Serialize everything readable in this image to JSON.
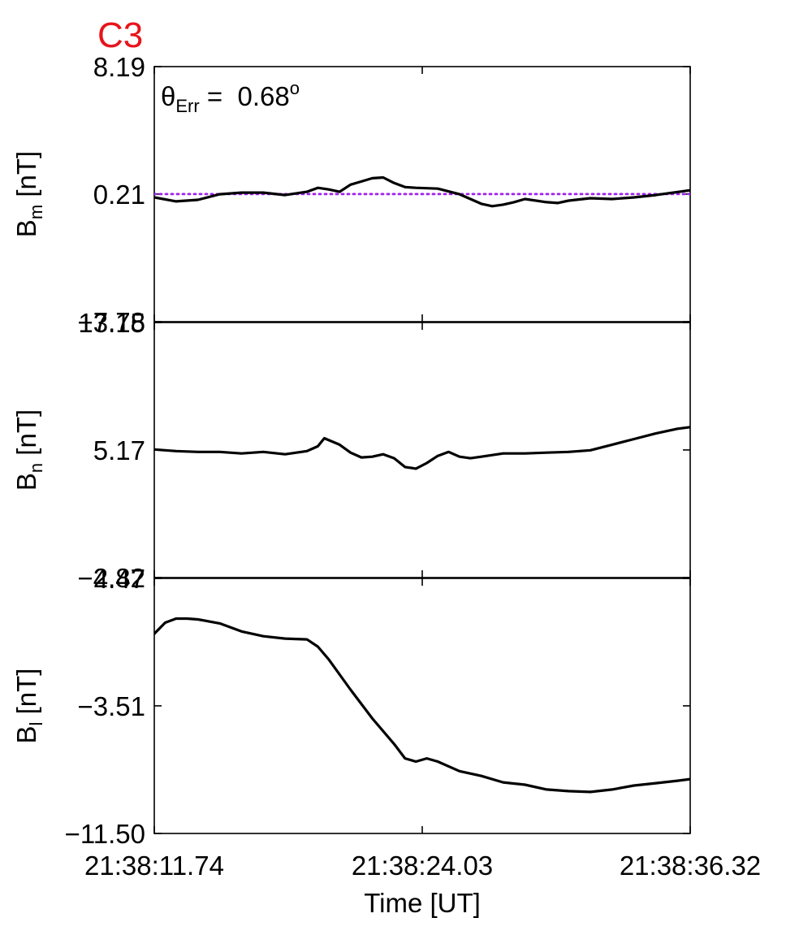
{
  "figure": {
    "panel_title": "C3",
    "title_color": "#e8141b",
    "line_color": "#000000",
    "reference_color": "#a020f0",
    "annotation": {
      "symbol": "θ",
      "subscript": "Err",
      "equals": " =  ",
      "value": "0.68",
      "unit_superscript": "o"
    }
  },
  "chart_data": {
    "type": "line",
    "x": {
      "label": "Time [UT]",
      "range": [
        0,
        24.58
      ],
      "tick_positions": [
        0,
        12.29,
        24.58
      ],
      "tick_labels": [
        "21:38:11.74",
        "21:38:24.03",
        "21:38:36.32"
      ]
    },
    "panels": [
      {
        "id": "bm",
        "ylabel": "B",
        "ylabel_sub": "m",
        "ylabel_unit": " [nT]",
        "ylim": [
          -7.78,
          8.19
        ],
        "yticks": [
          -7.78,
          0.21,
          8.19
        ],
        "ytick_labels": [
          "−7.78",
          "0.21",
          "8.19"
        ],
        "reference_line": 0.21,
        "series": {
          "x": [
            0,
            1.0,
            2.0,
            3.0,
            4.0,
            5.0,
            6.0,
            7.0,
            7.5,
            8.0,
            8.5,
            9.0,
            9.5,
            10.0,
            10.5,
            11.0,
            11.5,
            12.0,
            13.0,
            14.0,
            15.0,
            15.5,
            16.0,
            16.5,
            17.0,
            18.0,
            18.5,
            19.0,
            20.0,
            21.0,
            22.0,
            23.0,
            24.58
          ],
          "y": [
            0.0,
            -0.25,
            -0.15,
            0.2,
            0.3,
            0.3,
            0.15,
            0.35,
            0.6,
            0.5,
            0.35,
            0.8,
            1.0,
            1.2,
            1.25,
            0.9,
            0.65,
            0.6,
            0.55,
            0.2,
            -0.4,
            -0.55,
            -0.45,
            -0.3,
            -0.1,
            -0.3,
            -0.35,
            -0.2,
            -0.05,
            -0.1,
            0.0,
            0.15,
            0.45
          ]
        }
      },
      {
        "id": "bn",
        "ylabel": "B",
        "ylabel_sub": "n",
        "ylabel_unit": " [nT]",
        "ylim": [
          -2.82,
          13.15
        ],
        "yticks": [
          -2.82,
          5.17,
          13.15
        ],
        "ytick_labels": [
          "−2.82",
          "5.17",
          "13.15"
        ],
        "series": {
          "x": [
            0,
            1.0,
            2.0,
            3.0,
            4.0,
            5.0,
            6.0,
            7.0,
            7.5,
            7.8,
            8.5,
            9.0,
            9.5,
            10.0,
            10.5,
            11.0,
            11.5,
            12.0,
            12.5,
            13.0,
            13.5,
            14.0,
            14.5,
            15.0,
            16.0,
            17.0,
            18.0,
            19.0,
            20.0,
            21.0,
            22.0,
            23.0,
            24.0,
            24.58
          ],
          "y": [
            5.2,
            5.1,
            5.05,
            5.05,
            4.95,
            5.05,
            4.9,
            5.1,
            5.4,
            5.9,
            5.5,
            5.0,
            4.7,
            4.75,
            4.9,
            4.65,
            4.1,
            4.0,
            4.35,
            4.8,
            5.05,
            4.75,
            4.65,
            4.75,
            4.95,
            4.95,
            5.0,
            5.05,
            5.15,
            5.5,
            5.85,
            6.2,
            6.5,
            6.6
          ]
        }
      },
      {
        "id": "bl",
        "ylabel": "B",
        "ylabel_sub": "l",
        "ylabel_unit": " [nT]",
        "ylim": [
          -11.5,
          4.47
        ],
        "yticks": [
          -11.5,
          -3.51,
          4.47
        ],
        "ytick_labels": [
          "−11.50",
          "−3.51",
          "4.47"
        ],
        "series": {
          "x": [
            0,
            0.5,
            1.0,
            1.5,
            2.0,
            3.0,
            4.0,
            5.0,
            6.0,
            7.0,
            7.5,
            8.0,
            9.0,
            10.0,
            11.0,
            11.5,
            12.0,
            12.5,
            13.0,
            14.0,
            15.0,
            16.0,
            17.0,
            18.0,
            19.0,
            20.0,
            21.0,
            22.0,
            23.0,
            24.0,
            24.58
          ],
          "y": [
            1.0,
            1.7,
            1.95,
            1.95,
            1.9,
            1.65,
            1.15,
            0.85,
            0.7,
            0.65,
            0.2,
            -0.6,
            -2.5,
            -4.3,
            -5.9,
            -6.8,
            -7.0,
            -6.8,
            -7.0,
            -7.6,
            -7.9,
            -8.3,
            -8.45,
            -8.75,
            -8.85,
            -8.9,
            -8.75,
            -8.5,
            -8.35,
            -8.2,
            -8.1
          ]
        }
      }
    ]
  }
}
